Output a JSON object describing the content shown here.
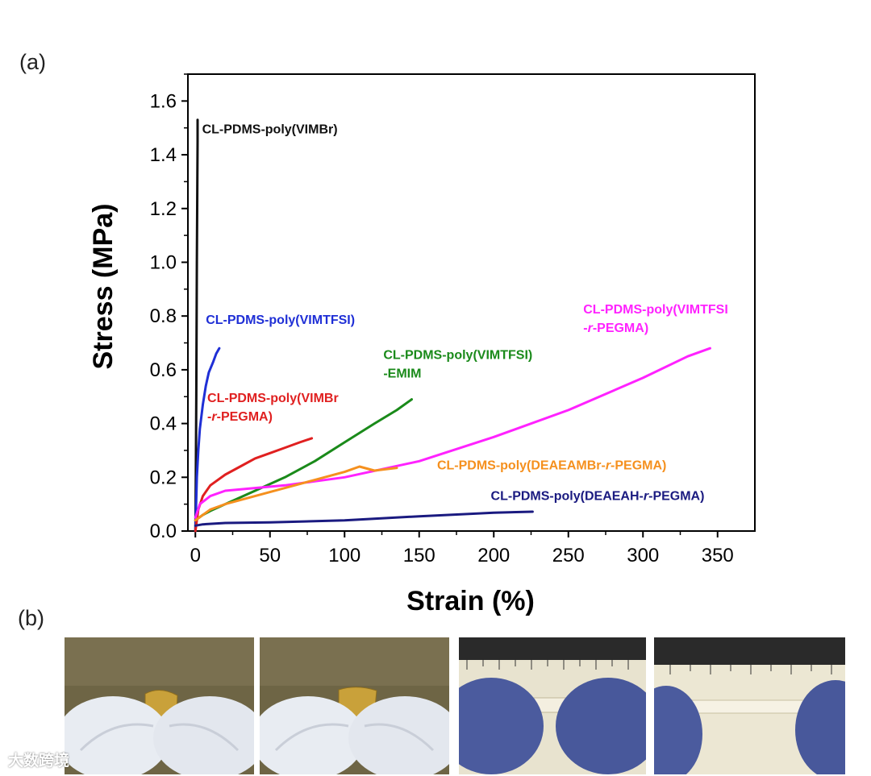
{
  "panel_a_label": "(a)",
  "panel_b_label": "(b)",
  "watermark": "大数跨境",
  "colors": {
    "black": "#111111",
    "blue": "#1f2fd6",
    "red": "#e02020",
    "green": "#1a8a1a",
    "magenta": "#ff22ff",
    "orange": "#f5901e",
    "navy": "#1a1a80"
  },
  "photo_descriptions": [
    "film-folded-1",
    "film-folded-2",
    "film-stretched-1",
    "film-stretched-2"
  ],
  "chart_data": {
    "type": "line",
    "title": "",
    "xlabel": "Strain (%)",
    "ylabel": "Stress (MPa)",
    "xlim": [
      -5,
      375
    ],
    "ylim": [
      0,
      1.7
    ],
    "xticks": [
      0,
      50,
      100,
      150,
      200,
      250,
      300,
      350
    ],
    "yticks": [
      0.0,
      0.2,
      0.4,
      0.6,
      0.8,
      1.0,
      1.2,
      1.4,
      1.6
    ],
    "xtick_labels": [
      "0",
      "50",
      "100",
      "150",
      "200",
      "250",
      "300",
      "350"
    ],
    "ytick_labels": [
      "0.0",
      "0.2",
      "0.4",
      "0.6",
      "0.8",
      "1.0",
      "1.2",
      "1.4",
      "1.6"
    ],
    "grid": false,
    "series": [
      {
        "name": "CL-PDMS-poly(VIMBr)",
        "label_lines": [
          "CL-PDMS-poly(VIMBr)"
        ],
        "color_key": "black",
        "label_anchor": [
          4.5,
          1.48
        ],
        "x": [
          0,
          0.3,
          0.6,
          1.0,
          1.3,
          1.5,
          1.5
        ],
        "y": [
          0.0,
          0.2,
          0.5,
          1.0,
          1.3,
          1.45,
          1.53
        ]
      },
      {
        "name": "CL-PDMS-poly(VIMTFSI)",
        "label_lines": [
          "CL-PDMS-poly(VIMTFSI)"
        ],
        "color_key": "blue",
        "label_anchor": [
          7,
          0.77
        ],
        "x": [
          0,
          0.5,
          1,
          2,
          3,
          5,
          7,
          9,
          12,
          14,
          16
        ],
        "y": [
          0.0,
          0.1,
          0.2,
          0.3,
          0.38,
          0.47,
          0.54,
          0.59,
          0.63,
          0.66,
          0.68
        ]
      },
      {
        "name": "CL-PDMS-poly(VIMBr-r-PEGMA)",
        "label_lines": [
          "CL-PDMS-poly(VIMBr",
          "-r-PEGMA)"
        ],
        "color_key": "red",
        "label_anchor": [
          8,
          0.48
        ],
        "x": [
          0,
          2,
          5,
          10,
          20,
          30,
          40,
          50,
          60,
          70,
          78
        ],
        "y": [
          0.0,
          0.08,
          0.13,
          0.17,
          0.21,
          0.24,
          0.27,
          0.29,
          0.31,
          0.33,
          0.345
        ]
      },
      {
        "name": "CL-PDMS-poly(VIMTFSI)-EMIM",
        "label_lines": [
          "CL-PDMS-poly(VIMTFSI)",
          "-EMIM"
        ],
        "color_key": "green",
        "label_anchor": [
          126,
          0.64
        ],
        "x": [
          0,
          5,
          10,
          20,
          40,
          60,
          80,
          100,
          120,
          135,
          145
        ],
        "y": [
          0.04,
          0.06,
          0.075,
          0.1,
          0.15,
          0.2,
          0.26,
          0.33,
          0.4,
          0.45,
          0.49
        ]
      },
      {
        "name": "CL-PDMS-poly(VIMTFSI-r-PEGMA)",
        "label_lines": [
          "CL-PDMS-poly(VIMTFSI",
          "-r-PEGMA)"
        ],
        "color_key": "magenta",
        "label_anchor": [
          260,
          0.81
        ],
        "x": [
          0,
          3,
          10,
          20,
          40,
          60,
          80,
          100,
          150,
          200,
          250,
          300,
          330,
          345
        ],
        "y": [
          0.05,
          0.1,
          0.13,
          0.15,
          0.16,
          0.17,
          0.185,
          0.2,
          0.26,
          0.35,
          0.45,
          0.57,
          0.65,
          0.68
        ]
      },
      {
        "name": "CL-PDMS-poly(DEAEAMBr-r-PEGMA)",
        "label_lines": [
          "CL-PDMS-poly(DEAEAMBr-r-PEGMA)"
        ],
        "color_key": "orange",
        "label_anchor": [
          162,
          0.23
        ],
        "x": [
          0,
          10,
          20,
          40,
          60,
          80,
          100,
          110,
          120,
          135
        ],
        "y": [
          0.04,
          0.08,
          0.1,
          0.13,
          0.16,
          0.19,
          0.22,
          0.24,
          0.225,
          0.235
        ]
      },
      {
        "name": "CL-PDMS-poly(DEAEAH-r-PEGMA)",
        "label_lines": [
          "CL-PDMS-poly(DEAEAH-r-PEGMA)"
        ],
        "color_key": "navy",
        "label_anchor": [
          198,
          0.115
        ],
        "x": [
          0,
          5,
          20,
          50,
          100,
          150,
          200,
          226
        ],
        "y": [
          0.02,
          0.025,
          0.03,
          0.032,
          0.04,
          0.055,
          0.068,
          0.072
        ]
      }
    ]
  }
}
